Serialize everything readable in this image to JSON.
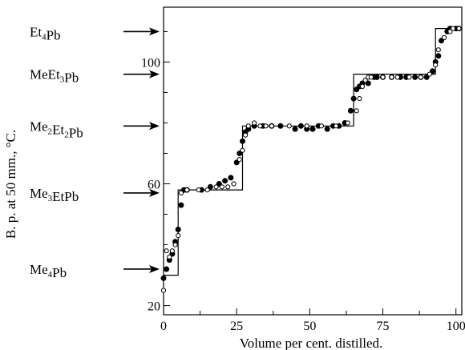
{
  "chart_data": {
    "type": "scatter",
    "xlabel": "Volume per cent. distilled.",
    "ylabel": "B. p. at 50 mm., °C.",
    "xlim": [
      0,
      102
    ],
    "ylim": [
      17,
      118
    ],
    "x_ticks": [
      0,
      25,
      50,
      75,
      100
    ],
    "y_ticks": [
      20,
      60,
      100
    ],
    "grid": false,
    "compounds": [
      {
        "base": "Et",
        "sub": "4",
        "suffix": "Pb",
        "y": 110
      },
      {
        "base": "MeEt",
        "sub": "3",
        "suffix": "Pb",
        "y": 96
      },
      {
        "base": "Me",
        "sub": "2",
        "suffix": "Et",
        "sub2": "2",
        "suffix2": "Pb",
        "y": 79
      },
      {
        "base": "Me",
        "sub": "3",
        "suffix": "EtPb",
        "y": 57
      },
      {
        "base": "Me",
        "sub": "4",
        "suffix": "Pb",
        "y": 32
      }
    ],
    "step_line": {
      "x": [
        0,
        5,
        5,
        27,
        27,
        65,
        65,
        93,
        93,
        102
      ],
      "y": [
        30,
        30,
        58,
        58,
        79,
        79,
        96,
        96,
        111,
        111
      ]
    },
    "series": [
      {
        "marker": "filled",
        "points": [
          [
            0,
            29
          ],
          [
            1,
            32
          ],
          [
            2,
            35
          ],
          [
            3,
            37
          ],
          [
            4,
            41
          ],
          [
            5,
            45
          ],
          [
            6,
            53
          ],
          [
            7,
            58
          ],
          [
            8,
            58
          ],
          [
            13,
            58
          ],
          [
            16,
            59
          ],
          [
            19,
            60
          ],
          [
            21,
            61
          ],
          [
            23,
            62
          ],
          [
            25,
            67
          ],
          [
            26,
            70
          ],
          [
            27,
            74
          ],
          [
            28,
            77
          ],
          [
            29,
            78
          ],
          [
            31,
            79
          ],
          [
            34,
            79
          ],
          [
            37,
            79
          ],
          [
            40,
            79
          ],
          [
            45,
            78
          ],
          [
            47,
            79
          ],
          [
            49,
            78
          ],
          [
            51,
            78
          ],
          [
            53,
            79
          ],
          [
            56,
            78
          ],
          [
            58,
            79
          ],
          [
            60,
            79
          ],
          [
            62,
            80
          ],
          [
            64,
            84
          ],
          [
            65,
            88
          ],
          [
            66,
            91
          ],
          [
            67,
            92
          ],
          [
            68,
            93
          ],
          [
            70,
            93
          ],
          [
            72,
            95
          ],
          [
            73,
            95
          ],
          [
            75,
            95
          ],
          [
            78,
            95
          ],
          [
            81,
            95
          ],
          [
            83,
            95
          ],
          [
            86,
            95
          ],
          [
            88,
            95
          ],
          [
            90,
            95
          ],
          [
            92,
            97
          ],
          [
            93,
            100
          ],
          [
            94,
            102
          ],
          [
            95,
            107
          ],
          [
            97,
            110
          ],
          [
            98,
            111
          ],
          [
            100,
            111
          ],
          [
            101,
            111
          ]
        ]
      },
      {
        "marker": "open",
        "points": [
          [
            0,
            25
          ],
          [
            1,
            38
          ],
          [
            2,
            36
          ],
          [
            3,
            38
          ],
          [
            4,
            40
          ],
          [
            5,
            43
          ],
          [
            6,
            57
          ],
          [
            8,
            58
          ],
          [
            12,
            58
          ],
          [
            15,
            58
          ],
          [
            18,
            59
          ],
          [
            20,
            59
          ],
          [
            22,
            59
          ],
          [
            24,
            60
          ],
          [
            26,
            68
          ],
          [
            27,
            71
          ],
          [
            28,
            76
          ],
          [
            29,
            79
          ],
          [
            31,
            80
          ],
          [
            33,
            79
          ],
          [
            35,
            79
          ],
          [
            37,
            79
          ],
          [
            43,
            79
          ],
          [
            49,
            79
          ],
          [
            54,
            79
          ],
          [
            59,
            79
          ],
          [
            63,
            80
          ],
          [
            66,
            84
          ],
          [
            67,
            88
          ],
          [
            68,
            92
          ],
          [
            69,
            94
          ],
          [
            70,
            95
          ],
          [
            71,
            95
          ],
          [
            75,
            95
          ],
          [
            78,
            95
          ],
          [
            80,
            95
          ],
          [
            84,
            95
          ],
          [
            88,
            95
          ],
          [
            91,
            96
          ],
          [
            93,
            99
          ],
          [
            94,
            104
          ],
          [
            96,
            108
          ],
          [
            98,
            110
          ],
          [
            99,
            111
          ],
          [
            101,
            111
          ]
        ]
      }
    ]
  }
}
